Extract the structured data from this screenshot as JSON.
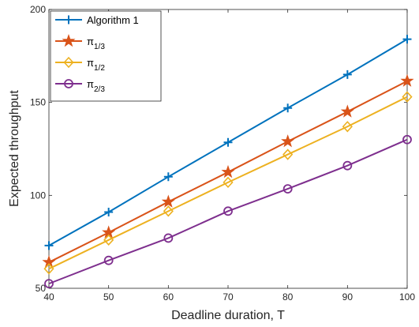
{
  "chart_data": {
    "type": "line",
    "xlabel": "Deadline duration, T",
    "ylabel": "Expected throughput",
    "x": [
      40,
      50,
      60,
      70,
      80,
      90,
      100
    ],
    "xlim": [
      40,
      100
    ],
    "ylim": [
      50,
      200
    ],
    "xticks": [
      "40",
      "50",
      "60",
      "70",
      "80",
      "90",
      "100"
    ],
    "yticks": [
      "50",
      "100",
      "150",
      "200"
    ],
    "grid": false,
    "legend_position": "top-left",
    "series": [
      {
        "name": "Algorithm 1",
        "legend_main": "Algorithm 1",
        "legend_sub": "",
        "color": "#0072BD",
        "marker": "plus",
        "values": [
          73,
          91,
          110,
          128.5,
          147,
          165,
          184
        ]
      },
      {
        "name": "π1/3",
        "legend_main": "π",
        "legend_sub": "1/3",
        "color": "#D95319",
        "marker": "star",
        "values": [
          64,
          80,
          96.5,
          112.5,
          129,
          145,
          161.5
        ]
      },
      {
        "name": "π1/2",
        "legend_main": "π",
        "legend_sub": "1/2",
        "color": "#EDB120",
        "marker": "diamond",
        "values": [
          60.5,
          76,
          91.5,
          107,
          122,
          137,
          153
        ]
      },
      {
        "name": "π2/3",
        "legend_main": "π",
        "legend_sub": "2/3",
        "color": "#7E2F8E",
        "marker": "circle",
        "values": [
          52.5,
          65,
          77,
          91.5,
          103.5,
          116,
          130
        ]
      }
    ]
  }
}
